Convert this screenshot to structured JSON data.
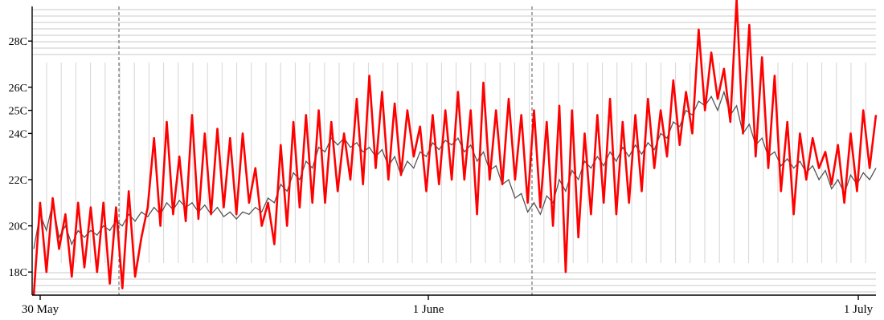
{
  "chart_data": {
    "type": "line",
    "title": "",
    "xlabel": "",
    "ylabel": "",
    "ylim": [
      17,
      29.5
    ],
    "y_ticks": [
      {
        "value": 18,
        "label": "18C"
      },
      {
        "value": 20,
        "label": "20C"
      },
      {
        "value": 22,
        "label": "22C"
      },
      {
        "value": 24,
        "label": "24C"
      },
      {
        "value": 25,
        "label": "25C"
      },
      {
        "value": 26,
        "label": "26C"
      },
      {
        "value": 28,
        "label": "28C"
      }
    ],
    "x_ticks": [
      {
        "label": "30 May"
      },
      {
        "label": "1 June"
      },
      {
        "label": "1 July"
      }
    ],
    "grid": true,
    "colors": {
      "red_series": "#ff0000",
      "gray_series": "#555555"
    },
    "series": [
      {
        "color": "#ff0000",
        "values": [
          17.0,
          21.0,
          18.0,
          21.2,
          19.0,
          20.5,
          17.8,
          21.0,
          18.2,
          20.8,
          18.0,
          21.0,
          17.5,
          20.8,
          17.3,
          21.5,
          17.8,
          19.5,
          20.8,
          23.8,
          20.0,
          24.5,
          20.5,
          23.0,
          20.2,
          24.8,
          20.3,
          24.0,
          20.5,
          24.2,
          20.8,
          23.8,
          20.5,
          24.0,
          21.0,
          22.5,
          20.0,
          21.0,
          19.2,
          23.5,
          20.0,
          24.5,
          20.8,
          24.8,
          21.0,
          25.0,
          21.0,
          24.5,
          21.5,
          24.0,
          22.0,
          25.5,
          21.8,
          26.5,
          22.5,
          25.8,
          22.0,
          25.3,
          22.2,
          25.0,
          23.0,
          24.3,
          21.5,
          24.8,
          21.8,
          25.0,
          22.0,
          25.8,
          22.0,
          25.0,
          20.5,
          26.2,
          22.0,
          25.0,
          21.8,
          25.5,
          22.0,
          24.8,
          21.0,
          25.0,
          20.8,
          24.5,
          20.0,
          25.2,
          18.0,
          25.0,
          19.5,
          24.0,
          20.5,
          24.8,
          21.0,
          25.5,
          20.5,
          24.5,
          21.0,
          24.8,
          21.5,
          25.5,
          22.5,
          25.0,
          23.0,
          26.3,
          23.5,
          25.8,
          24.0,
          28.5,
          25.0,
          27.5,
          25.5,
          26.8,
          24.5,
          29.8,
          24.0,
          28.7,
          23.0,
          27.3,
          22.5,
          26.5,
          21.5,
          24.5,
          20.5,
          24.0,
          22.0,
          23.8,
          22.5,
          23.2,
          21.8,
          23.5,
          21.0,
          24.0,
          21.5,
          25.0,
          22.5,
          24.8
        ]
      },
      {
        "color": "#555555",
        "values": [
          19.0,
          20.5,
          19.8,
          21.0,
          19.5,
          20.0,
          19.2,
          19.8,
          19.5,
          19.8,
          19.6,
          20.0,
          19.8,
          20.2,
          20.0,
          20.5,
          20.2,
          20.6,
          20.4,
          20.8,
          20.5,
          21.0,
          20.7,
          21.1,
          20.8,
          21.0,
          20.6,
          20.9,
          20.5,
          20.8,
          20.4,
          20.6,
          20.3,
          20.6,
          20.5,
          20.8,
          20.6,
          21.2,
          21.0,
          21.8,
          21.5,
          22.3,
          22.0,
          22.8,
          22.5,
          23.4,
          23.2,
          23.8,
          23.5,
          23.8,
          23.4,
          23.6,
          23.2,
          23.4,
          23.0,
          23.3,
          22.6,
          23.0,
          22.2,
          22.8,
          22.5,
          23.2,
          23.0,
          23.6,
          23.3,
          23.7,
          23.5,
          23.8,
          23.2,
          23.5,
          22.8,
          23.2,
          22.4,
          22.6,
          21.8,
          22.0,
          21.2,
          21.4,
          20.6,
          21.0,
          20.5,
          21.3,
          21.0,
          22.0,
          21.5,
          22.4,
          22.0,
          22.8,
          22.5,
          23.0,
          22.6,
          23.2,
          22.8,
          23.4,
          23.0,
          23.5,
          23.1,
          23.6,
          23.3,
          24.0,
          23.8,
          24.5,
          24.3,
          25.0,
          24.8,
          25.4,
          25.2,
          25.6,
          25.0,
          25.8,
          24.8,
          25.2,
          24.0,
          24.4,
          23.5,
          23.8,
          23.0,
          23.2,
          22.6,
          22.9,
          22.5,
          22.8,
          22.3,
          22.6,
          22.0,
          22.4,
          21.6,
          22.0,
          21.4,
          22.2,
          21.8,
          22.3,
          22.0,
          22.5
        ]
      }
    ]
  }
}
